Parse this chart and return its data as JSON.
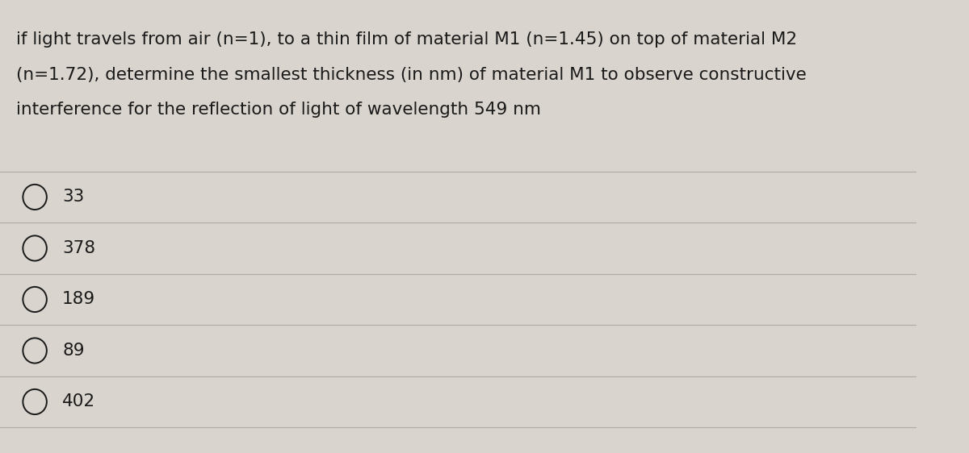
{
  "question_lines": [
    "if light travels from air (n=1), to a thin film of material M1 (n=1.45) on top of material M2",
    "(n=1.72), determine the smallest thickness (in nm) of material M1 to observe constructive",
    "interference for the reflection of light of wavelength 549 nm"
  ],
  "choices": [
    "33",
    "378",
    "189",
    "89",
    "402"
  ],
  "background_color": "#d9d4cd",
  "text_color": "#1a1a1a",
  "line_color": "#b0aba4",
  "circle_color": "#1a1a1a",
  "question_fontsize": 15.5,
  "choice_fontsize": 15.5,
  "figsize": [
    12.0,
    5.62
  ]
}
